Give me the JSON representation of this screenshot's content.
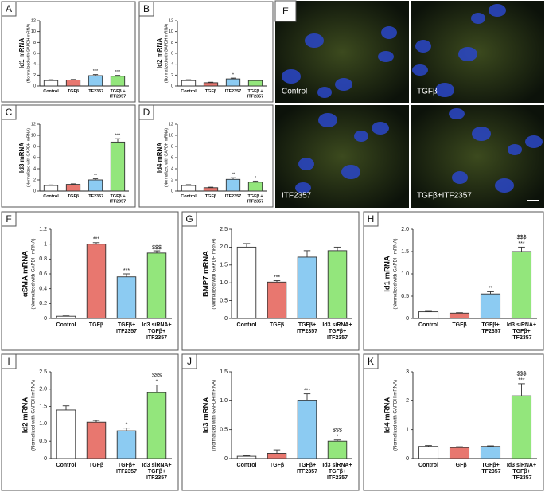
{
  "chart_data": [
    {
      "type": "bar",
      "panel": "A",
      "y_label": "Id1 mRNA",
      "y_sublabel": "(Normalized with GAPDH mRNA)",
      "categories": [
        [
          "Control"
        ],
        [
          "TGFβ"
        ],
        [
          "ITF2357"
        ],
        [
          "TGFβ +",
          "ITF2357"
        ]
      ],
      "values": [
        1.0,
        1.1,
        1.9,
        1.8
      ],
      "errors": [
        0.15,
        0.1,
        0.2,
        0.15
      ],
      "significance": [
        [],
        [],
        [
          "***"
        ],
        [
          "***"
        ]
      ],
      "colors": [
        "#ffffff",
        "#e8776f",
        "#8ccbf2",
        "#93e67c"
      ],
      "ylim": [
        0,
        12
      ],
      "yticks": [
        0,
        2,
        4,
        6,
        8,
        10,
        12
      ]
    },
    {
      "type": "bar",
      "panel": "B",
      "y_label": "Id2 mRNA",
      "y_sublabel": "(Normalized with GAPDH mRNA)",
      "categories": [
        [
          "Control"
        ],
        [
          "TGFβ"
        ],
        [
          "ITF2357"
        ],
        [
          "TGFβ +",
          "ITF2357"
        ]
      ],
      "values": [
        1.0,
        0.6,
        1.3,
        1.0
      ],
      "errors": [
        0.15,
        0.1,
        0.15,
        0.1
      ],
      "significance": [
        [],
        [],
        [
          "*"
        ],
        []
      ],
      "colors": [
        "#ffffff",
        "#e8776f",
        "#8ccbf2",
        "#93e67c"
      ],
      "ylim": [
        0,
        12
      ],
      "yticks": [
        0,
        2,
        4,
        6,
        8,
        10,
        12
      ]
    },
    {
      "type": "bar",
      "panel": "C",
      "y_label": "Id3 mRNA",
      "y_sublabel": "(Normalized with GAPDH mRNA)",
      "categories": [
        [
          "Control"
        ],
        [
          "TGFβ"
        ],
        [
          "ITF2357"
        ],
        [
          "TGFβ +",
          "ITF2357"
        ]
      ],
      "values": [
        1.0,
        1.2,
        2.0,
        8.8
      ],
      "errors": [
        0.1,
        0.1,
        0.2,
        0.6
      ],
      "significance": [
        [],
        [],
        [
          "**"
        ],
        [
          "***"
        ]
      ],
      "colors": [
        "#ffffff",
        "#e8776f",
        "#8ccbf2",
        "#93e67c"
      ],
      "ylim": [
        0,
        12
      ],
      "yticks": [
        0,
        2,
        4,
        6,
        8,
        10,
        12
      ]
    },
    {
      "type": "bar",
      "panel": "D",
      "y_label": "Id4 mRNA",
      "y_sublabel": "(Normalized with GAPDH mRNA)",
      "categories": [
        [
          "Control"
        ],
        [
          "TGFβ"
        ],
        [
          "ITF2357"
        ],
        [
          "TGFβ +",
          "ITF2357"
        ]
      ],
      "values": [
        1.0,
        0.6,
        2.1,
        1.6
      ],
      "errors": [
        0.15,
        0.1,
        0.3,
        0.2
      ],
      "significance": [
        [],
        [],
        [
          "**"
        ],
        [
          "*"
        ]
      ],
      "colors": [
        "#ffffff",
        "#e8776f",
        "#8ccbf2",
        "#93e67c"
      ],
      "ylim": [
        0,
        12
      ],
      "yticks": [
        0,
        2,
        4,
        6,
        8,
        10,
        12
      ]
    },
    {
      "type": "bar",
      "panel": "F",
      "y_label": "αSMA mRNA",
      "y_sublabel": "(Normalized with GAPDH mRNA)",
      "categories": [
        [
          "Control"
        ],
        [
          "TGFβ"
        ],
        [
          "TGFβ+",
          "ITF2357"
        ],
        [
          "Id3 siRNA+",
          "TGFβ+",
          "ITF2357"
        ]
      ],
      "values": [
        0.03,
        1.0,
        0.56,
        0.88
      ],
      "errors": [
        0.005,
        0.02,
        0.04,
        0.03
      ],
      "significance": [
        [],
        [
          "***"
        ],
        [
          "***"
        ],
        [
          "$$$"
        ]
      ],
      "colors": [
        "#ffffff",
        "#e8776f",
        "#8ccbf2",
        "#93e67c"
      ],
      "ylim": [
        0,
        1.2
      ],
      "yticks": [
        0,
        0.2,
        0.4,
        0.6,
        0.8,
        1,
        1.2
      ]
    },
    {
      "type": "bar",
      "panel": "G",
      "y_label": "BMP7 mRNA",
      "y_sublabel": "(Normalized with GAPDH mRNA)",
      "categories": [
        [
          "Control"
        ],
        [
          "TGFβ"
        ],
        [
          "TGFβ+",
          "ITF2357"
        ],
        [
          "Id3 siRNA+",
          "TGFβ+",
          "ITF2357"
        ]
      ],
      "values": [
        2.0,
        1.02,
        1.72,
        1.9
      ],
      "errors": [
        0.1,
        0.04,
        0.18,
        0.1
      ],
      "significance": [
        [],
        [
          "***"
        ],
        [],
        []
      ],
      "colors": [
        "#ffffff",
        "#e8776f",
        "#8ccbf2",
        "#93e67c"
      ],
      "ylim": [
        0,
        2.5
      ],
      "yticks": [
        0,
        0.5,
        {
          "value": 1,
          "label": "1.0"
        },
        1.5,
        {
          "value": 2,
          "label": "2.0"
        },
        2.5
      ]
    },
    {
      "type": "bar",
      "panel": "H",
      "y_label": "Id1 mRNA",
      "y_sublabel": "(Normalized with GAPDH mRNA)",
      "categories": [
        [
          "Control"
        ],
        [
          "TGFβ"
        ],
        [
          "TGFβ+",
          "ITF2357"
        ],
        [
          "Id3 siRNA+",
          "TGFβ+",
          "ITF2357"
        ]
      ],
      "values": [
        0.15,
        0.12,
        0.55,
        1.5
      ],
      "errors": [
        0.01,
        0.01,
        0.05,
        0.1
      ],
      "significance": [
        [],
        [],
        [
          "**"
        ],
        [
          "$$$",
          "***"
        ]
      ],
      "colors": [
        "#ffffff",
        "#e8776f",
        "#8ccbf2",
        "#93e67c"
      ],
      "ylim": [
        0,
        2
      ],
      "yticks": [
        0,
        0.5,
        {
          "value": 1,
          "label": "1.0"
        },
        1.5,
        {
          "value": 2,
          "label": "2.0"
        }
      ]
    },
    {
      "type": "bar",
      "panel": "I",
      "y_label": "Id2 mRNA",
      "y_sublabel": "(Normalized with GAPDH mRNA)",
      "categories": [
        [
          "Control"
        ],
        [
          "TGFβ"
        ],
        [
          "TGFβ+",
          "ITF2357"
        ],
        [
          "Id3 siRNA+",
          "TGFβ+",
          "ITF2357"
        ]
      ],
      "values": [
        1.4,
        1.05,
        0.8,
        1.9
      ],
      "errors": [
        0.12,
        0.05,
        0.08,
        0.22
      ],
      "significance": [
        [],
        [],
        [
          "*"
        ],
        [
          "$$$",
          "*"
        ]
      ],
      "colors": [
        "#ffffff",
        "#e8776f",
        "#8ccbf2",
        "#93e67c"
      ],
      "ylim": [
        0,
        2.5
      ],
      "yticks": [
        0,
        0.5,
        {
          "value": 1,
          "label": "1.0"
        },
        1.5,
        {
          "value": 2,
          "label": "2.0"
        },
        2.5
      ]
    },
    {
      "type": "bar",
      "panel": "J",
      "y_label": "Id3 mRNA",
      "y_sublabel": "(Normalized with GAPDH mRNA)",
      "categories": [
        [
          "Control"
        ],
        [
          "TGFβ"
        ],
        [
          "TGFβ+",
          "ITF2357"
        ],
        [
          "Id3 siRNA+",
          "TGFβ+",
          "ITF2357"
        ]
      ],
      "values": [
        0.04,
        0.09,
        1.0,
        0.3
      ],
      "errors": [
        0.01,
        0.06,
        0.12,
        0.02
      ],
      "significance": [
        [],
        [],
        [
          "***"
        ],
        [
          "$$$",
          "*"
        ]
      ],
      "colors": [
        "#ffffff",
        "#e8776f",
        "#8ccbf2",
        "#93e67c"
      ],
      "ylim": [
        0,
        1.5
      ],
      "yticks": [
        0,
        0.5,
        {
          "value": 1,
          "label": "1.0"
        },
        1.5
      ]
    },
    {
      "type": "bar",
      "panel": "K",
      "y_label": "Id4 mRNA",
      "y_sublabel": "(Normalized with GAPDH mRNA)",
      "categories": [
        [
          "Control"
        ],
        [
          "TGFβ"
        ],
        [
          "TGFβ+",
          "ITF2357"
        ],
        [
          "Id3 siRNA+",
          "TGFβ+",
          "ITF2357"
        ]
      ],
      "values": [
        0.42,
        0.38,
        0.42,
        2.17
      ],
      "errors": [
        0.03,
        0.03,
        0.02,
        0.42
      ],
      "significance": [
        [],
        [],
        [],
        [
          "$$$",
          "***"
        ]
      ],
      "colors": [
        "#ffffff",
        "#e8776f",
        "#8ccbf2",
        "#93e67c"
      ],
      "ylim": [
        0,
        3
      ],
      "yticks": [
        0,
        1,
        2,
        3
      ]
    }
  ],
  "micrographs": {
    "panel": "E",
    "captions": [
      "Control",
      "TGFβ",
      "ITF2357",
      "TGFβ+ITF2357"
    ]
  }
}
